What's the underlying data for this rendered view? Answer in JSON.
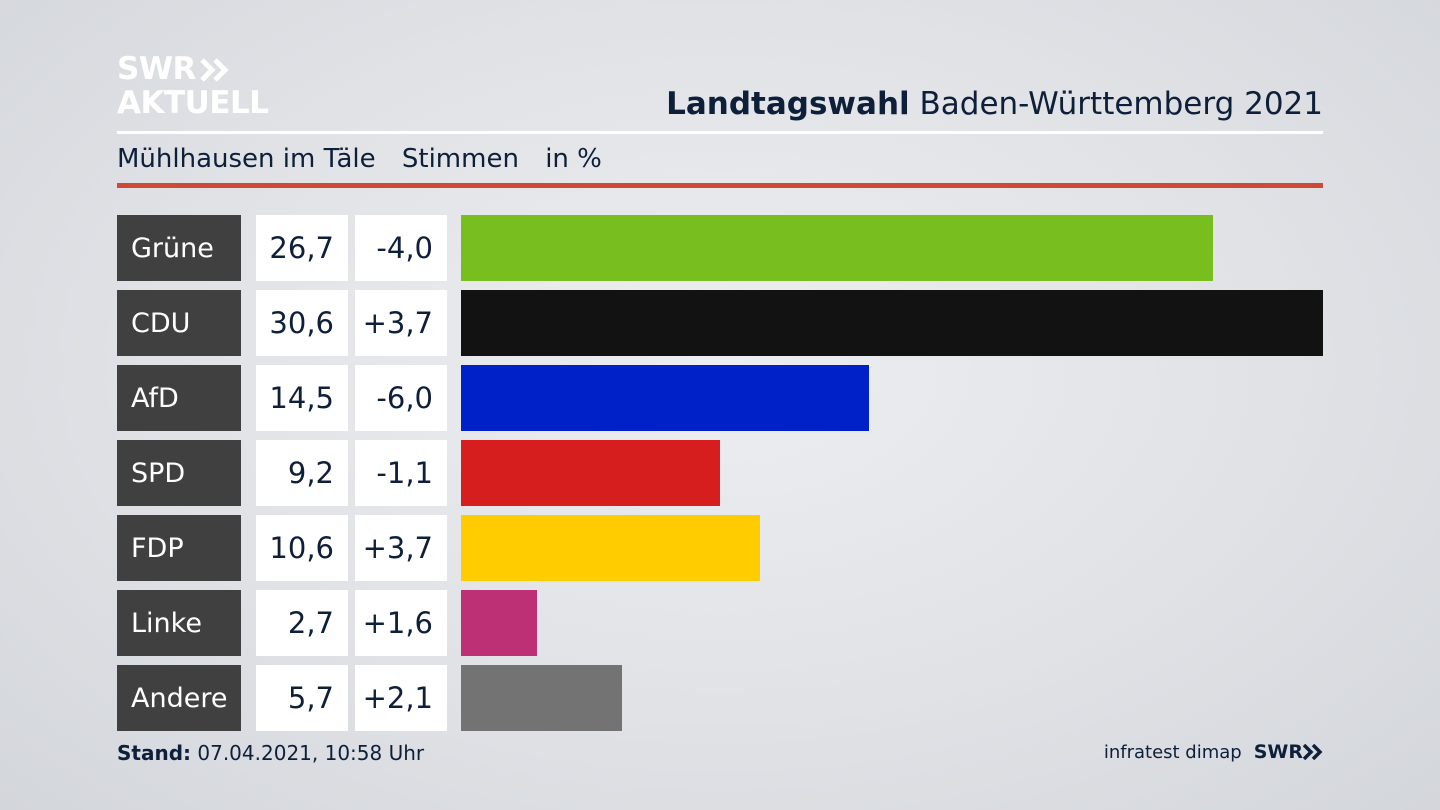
{
  "logo": {
    "line1": "SWR",
    "line2": "AKTUELL"
  },
  "header": {
    "title_bold": "Landtagswahl",
    "title_rest": "Baden-Württemberg 2021"
  },
  "subheader": {
    "location": "Mühlhausen im Täle",
    "measure": "Stimmen",
    "unit": "in %"
  },
  "chart_data": {
    "type": "bar",
    "orientation": "horizontal",
    "categories": [
      "Grüne",
      "CDU",
      "AfD",
      "SPD",
      "FDP",
      "Linke",
      "Andere"
    ],
    "values": [
      26.7,
      30.6,
      14.5,
      9.2,
      10.6,
      2.7,
      5.7
    ],
    "value_labels": [
      "26,7",
      "30,6",
      "14,5",
      "9,2",
      "10,6",
      "2,7",
      "5,7"
    ],
    "change_labels": [
      "-4,0",
      "+3,7",
      "-6,0",
      "-1,1",
      "+3,7",
      "+1,6",
      "+2,1"
    ],
    "changes": [
      -4.0,
      3.7,
      -6.0,
      -1.1,
      3.7,
      1.6,
      2.1
    ],
    "colors": [
      "#78be1e",
      "#121212",
      "#0021c8",
      "#d61e1e",
      "#ffcc00",
      "#be3075",
      "#737373"
    ],
    "xlim": [
      0,
      30.6
    ]
  },
  "footer": {
    "stand_label": "Stand:",
    "stand_value": "07.04.2021, 10:58 Uhr",
    "source": "infratest dimap",
    "brand": "SWR"
  },
  "colors": {
    "accent_red": "#cf4a36",
    "party_box": "#404040"
  }
}
